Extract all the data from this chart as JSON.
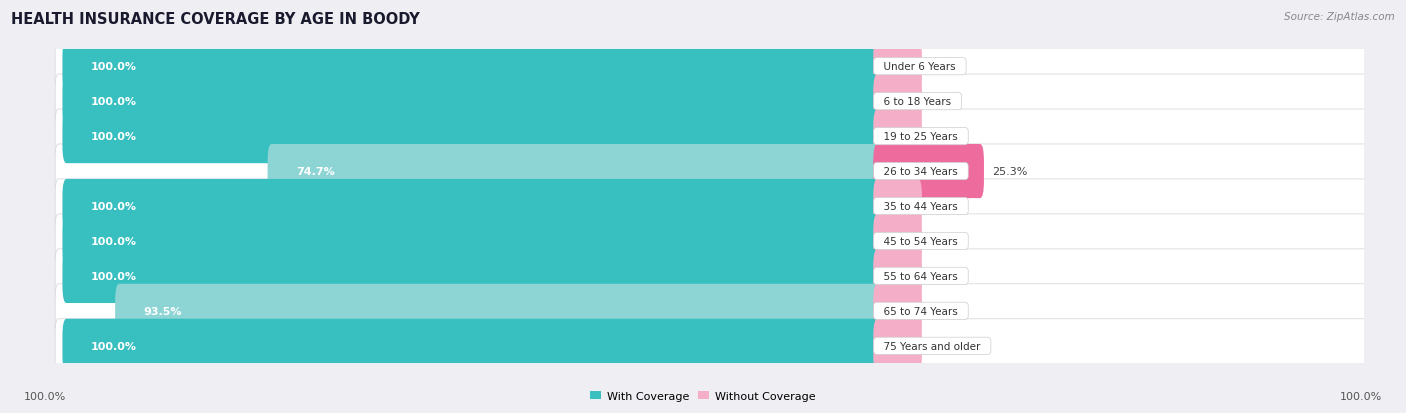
{
  "title": "HEALTH INSURANCE COVERAGE BY AGE IN BOODY",
  "source": "Source: ZipAtlas.com",
  "categories": [
    "Under 6 Years",
    "6 to 18 Years",
    "19 to 25 Years",
    "26 to 34 Years",
    "35 to 44 Years",
    "45 to 54 Years",
    "55 to 64 Years",
    "65 to 74 Years",
    "75 Years and older"
  ],
  "with_coverage": [
    100.0,
    100.0,
    100.0,
    74.7,
    100.0,
    100.0,
    100.0,
    93.5,
    100.0
  ],
  "without_coverage": [
    0.0,
    0.0,
    0.0,
    25.3,
    0.0,
    0.0,
    0.0,
    6.5,
    0.0
  ],
  "color_with": "#38bfc0",
  "color_with_light": "#8dd4d4",
  "color_without_dark": "#ee6b9e",
  "color_without_light": "#f5aec8",
  "bg_color": "#eeeef3",
  "row_bg": "#ffffff",
  "row_alt_bg": "#f5f5f8",
  "title_fontsize": 10.5,
  "label_fontsize": 8.0,
  "tick_fontsize": 8.0,
  "source_fontsize": 7.5
}
